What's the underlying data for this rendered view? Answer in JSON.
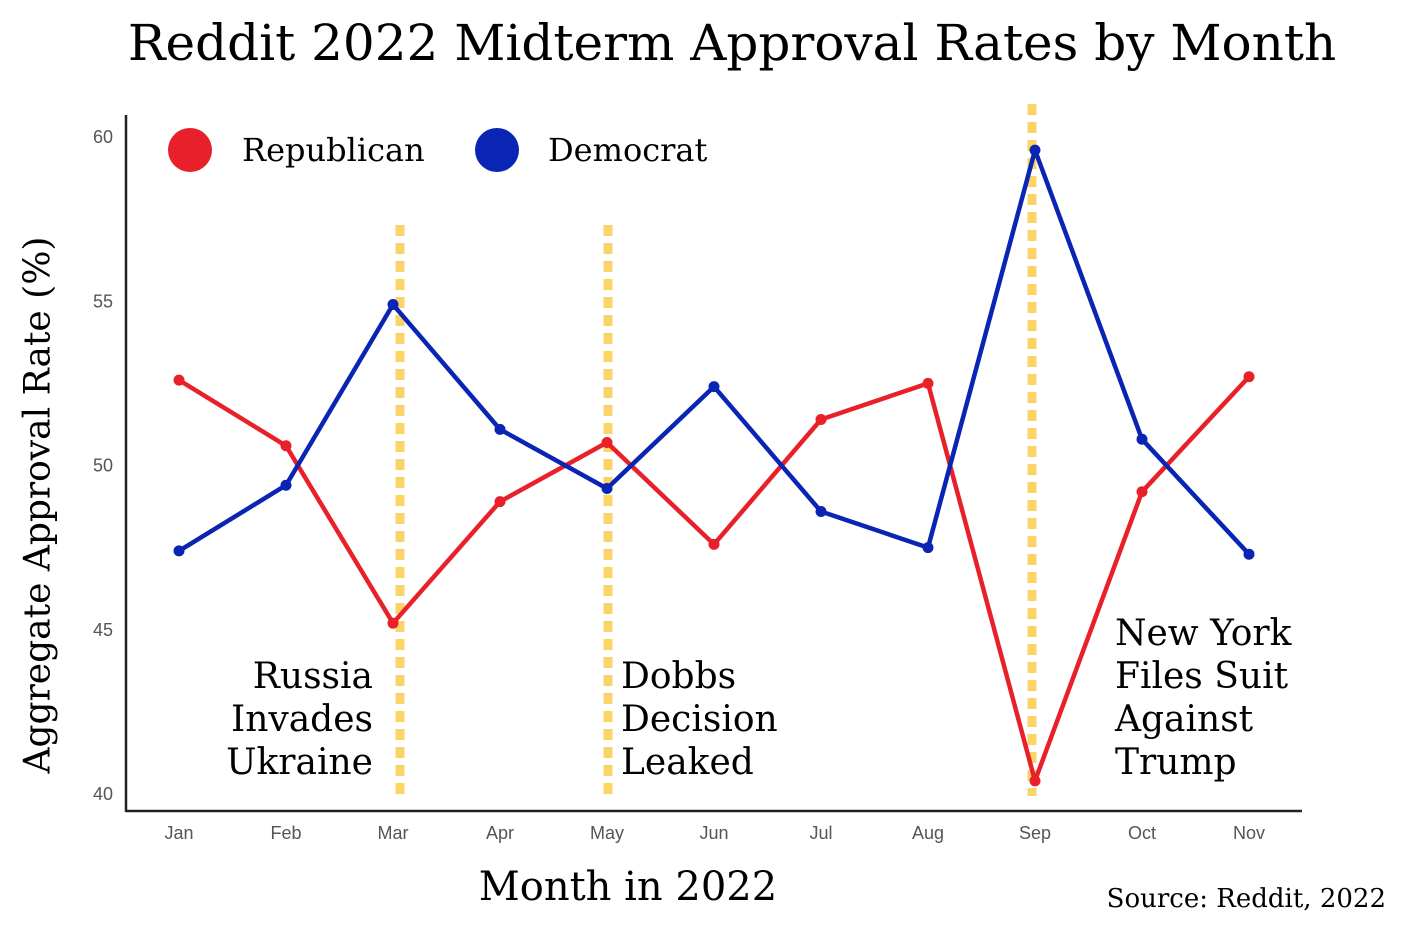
{
  "chart_data": {
    "type": "line",
    "title": "Reddit 2022 Midterm Approval Rates by Month",
    "xlabel": "Month in 2022",
    "ylabel": "Aggregate Approval Rate (%)",
    "source": "Source: Reddit, 2022",
    "categories": [
      "Jan",
      "Feb",
      "Mar",
      "Apr",
      "May",
      "Jun",
      "Jul",
      "Aug",
      "Sep",
      "Oct",
      "Nov"
    ],
    "ylim": [
      40,
      60
    ],
    "yticks": [
      40,
      45,
      50,
      55,
      60
    ],
    "grid": false,
    "legend_position": "top-left",
    "series": [
      {
        "name": "Republican",
        "color": "#e8202a",
        "values": [
          52.6,
          50.6,
          45.2,
          48.9,
          50.7,
          47.6,
          51.4,
          52.5,
          40.4,
          49.2,
          52.7
        ]
      },
      {
        "name": "Democrat",
        "color": "#0a24b4",
        "values": [
          47.4,
          49.4,
          54.9,
          51.1,
          49.3,
          52.4,
          48.6,
          47.5,
          59.6,
          50.8,
          47.3
        ]
      }
    ],
    "annotations": [
      {
        "category": "Mar",
        "lines": [
          "Russia",
          "Invades",
          "Ukraine"
        ],
        "side": "left"
      },
      {
        "category": "May",
        "lines": [
          "Dobbs",
          "Decision",
          "Leaked"
        ],
        "side": "right"
      },
      {
        "category": "Sep",
        "lines": [
          "New York",
          "Files Suit",
          "Against",
          "Trump"
        ],
        "side": "right"
      }
    ],
    "event_line_color": "#fbd467"
  }
}
